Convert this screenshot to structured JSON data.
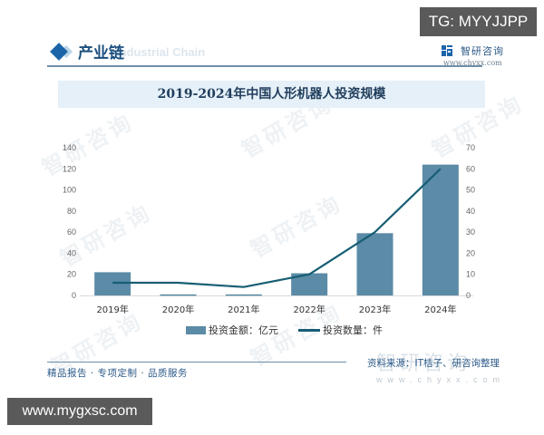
{
  "overlay": {
    "tg_badge": "TG: MYYJJPP",
    "site_badge": "www.mygxsc.com"
  },
  "header": {
    "section_title": "产业链",
    "section_subtitle_ghost": "Industrial Chain",
    "brand_name": "智研咨询",
    "brand_url": "www.chyxx.com"
  },
  "watermark_text": "智研咨询",
  "chart_data": {
    "type": "bar+line",
    "title": "2019-2024年中国人形机器人投资规模",
    "categories": [
      "2019年",
      "2020年",
      "2021年",
      "2022年",
      "2023年",
      "2024年"
    ],
    "series": [
      {
        "name": "投资金额：亿元",
        "type": "bar",
        "axis": "left",
        "color": "#5b8ba6",
        "values": [
          22,
          1,
          1,
          21,
          59,
          124
        ]
      },
      {
        "name": "投资数量：件",
        "type": "line",
        "axis": "right",
        "color": "#175e74",
        "values": [
          6,
          6,
          4,
          10,
          30,
          60
        ]
      }
    ],
    "y_left": {
      "label": "",
      "ylim": [
        0,
        140
      ],
      "ticks": [
        0,
        20,
        40,
        60,
        80,
        100,
        120,
        140
      ]
    },
    "y_right": {
      "label": "",
      "ylim": [
        0,
        70
      ],
      "ticks": [
        0,
        10,
        20,
        30,
        40,
        50,
        60,
        70
      ]
    },
    "xlabel": "",
    "grid": false,
    "legend_position": "bottom"
  },
  "legend": {
    "bar_label": "投资金额：亿元",
    "line_label": "投资数量：件"
  },
  "footer": {
    "tagline": "精品报告 · 专项定制 · 品质服务",
    "source": "资料来源：IT桔子、研咨询整理",
    "watermark": "智研咨询",
    "watermark_url": "www.chyxx.com"
  }
}
